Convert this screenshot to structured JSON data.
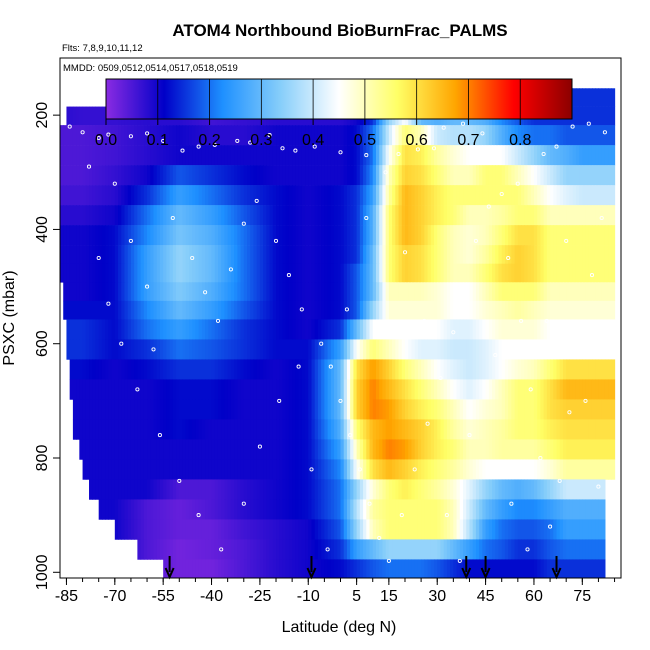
{
  "chart_data": {
    "type": "heatmap",
    "title": "ATOM4 Northbound BioBurnFrac_PALMS",
    "annotations": [
      "Flts: 7,8,9,10,11,12",
      "MMDD: 0509,0512,0514,0517,0518,0519"
    ],
    "xlabel": "Latitude (deg N)",
    "ylabel": "PSXC (mbar)",
    "xlim": [
      -87,
      87
    ],
    "ylim": [
      1010,
      100
    ],
    "x_ticks": [
      -85,
      -70,
      -55,
      -40,
      -25,
      -10,
      5,
      15,
      30,
      45,
      60,
      75
    ],
    "y_ticks": [
      200,
      400,
      600,
      800,
      1000
    ],
    "colorbar": {
      "ticks": [
        0.0,
        0.1,
        0.2,
        0.3,
        0.4,
        0.5,
        0.6,
        0.7,
        0.8
      ],
      "tick_labels": [
        "0.0",
        "0.1",
        "0.2",
        "0.3",
        "0.4",
        "0.5",
        "0.6",
        "0.7",
        "0.8"
      ],
      "range": [
        0,
        0.9
      ],
      "colors": [
        "#8a2be2",
        "#0000c8",
        "#1e90ff",
        "#87cefa",
        "#ffffff",
        "#ffff66",
        "#ffa500",
        "#ff0000",
        "#8b0000"
      ]
    },
    "pressure_bands": [
      170,
      200,
      235,
      270,
      305,
      340,
      375,
      410,
      445,
      475,
      510,
      540,
      575,
      610,
      645,
      680,
      715,
      750,
      785,
      820,
      855,
      890,
      925,
      960,
      995
    ],
    "band_lat_start": [
      -55,
      -85,
      -87,
      -87,
      -87,
      -87,
      -87,
      -87,
      -87,
      -87,
      -86,
      -86,
      -85,
      -85,
      -84,
      -84,
      -83,
      -83,
      -81,
      -80,
      -78,
      -75,
      -70,
      -63,
      -55
    ],
    "band_lat_end": [
      85,
      85,
      85,
      85,
      85,
      85,
      85,
      85,
      85,
      85,
      85,
      85,
      85,
      85,
      85,
      85,
      85,
      85,
      85,
      85,
      82,
      82,
      82,
      82,
      82
    ],
    "latitude_nodes": [
      -87,
      -80,
      -70,
      -60,
      -50,
      -40,
      -30,
      -20,
      -10,
      0,
      5,
      10,
      15,
      20,
      25,
      30,
      35,
      40,
      45,
      50,
      55,
      60,
      65,
      70,
      75,
      80,
      87
    ],
    "values": [
      [
        0.1,
        0.1,
        0.1,
        0.08,
        0.08,
        0.07,
        0.08,
        0.1,
        0.1,
        0.1,
        0.1,
        0.13,
        0.15,
        0.2,
        0.25,
        0.28,
        0.3,
        0.3,
        0.28,
        0.25,
        0.2,
        0.18,
        0.15,
        0.15,
        0.15,
        0.15,
        0.15
      ],
      [
        0.08,
        0.07,
        0.07,
        0.08,
        0.08,
        0.06,
        0.07,
        0.08,
        0.08,
        0.08,
        0.1,
        0.15,
        0.35,
        0.45,
        0.3,
        0.28,
        0.3,
        0.3,
        0.28,
        0.22,
        0.18,
        0.15,
        0.15,
        0.15,
        0.15,
        0.15,
        0.15
      ],
      [
        0.05,
        0.05,
        0.06,
        0.08,
        0.1,
        0.08,
        0.08,
        0.1,
        0.1,
        0.1,
        0.12,
        0.2,
        0.4,
        0.55,
        0.5,
        0.4,
        0.38,
        0.38,
        0.35,
        0.28,
        0.22,
        0.2,
        0.2,
        0.18,
        0.18,
        0.18,
        0.18
      ],
      [
        0.05,
        0.05,
        0.06,
        0.08,
        0.1,
        0.1,
        0.1,
        0.1,
        0.1,
        0.1,
        0.12,
        0.2,
        0.45,
        0.6,
        0.58,
        0.52,
        0.48,
        0.45,
        0.45,
        0.45,
        0.4,
        0.35,
        0.3,
        0.28,
        0.25,
        0.25,
        0.25
      ],
      [
        0.05,
        0.05,
        0.07,
        0.1,
        0.18,
        0.15,
        0.12,
        0.1,
        0.1,
        0.1,
        0.12,
        0.22,
        0.5,
        0.62,
        0.6,
        0.55,
        0.5,
        0.5,
        0.55,
        0.55,
        0.5,
        0.45,
        0.4,
        0.35,
        0.35,
        0.35,
        0.35
      ],
      [
        0.06,
        0.06,
        0.08,
        0.15,
        0.25,
        0.2,
        0.15,
        0.12,
        0.1,
        0.12,
        0.15,
        0.25,
        0.52,
        0.65,
        0.62,
        0.58,
        0.55,
        0.55,
        0.55,
        0.55,
        0.55,
        0.5,
        0.45,
        0.42,
        0.4,
        0.4,
        0.4
      ],
      [
        0.08,
        0.08,
        0.1,
        0.2,
        0.3,
        0.25,
        0.18,
        0.12,
        0.1,
        0.12,
        0.15,
        0.28,
        0.55,
        0.65,
        0.62,
        0.58,
        0.55,
        0.5,
        0.5,
        0.52,
        0.55,
        0.55,
        0.5,
        0.5,
        0.5,
        0.5,
        0.5
      ],
      [
        0.1,
        0.1,
        0.12,
        0.22,
        0.32,
        0.28,
        0.2,
        0.12,
        0.1,
        0.12,
        0.15,
        0.28,
        0.55,
        0.65,
        0.62,
        0.55,
        0.5,
        0.48,
        0.5,
        0.55,
        0.6,
        0.6,
        0.55,
        0.55,
        0.55,
        0.55,
        0.55
      ],
      [
        0.1,
        0.1,
        0.12,
        0.25,
        0.35,
        0.3,
        0.2,
        0.12,
        0.1,
        0.12,
        0.15,
        0.3,
        0.55,
        0.62,
        0.6,
        0.55,
        0.5,
        0.48,
        0.52,
        0.58,
        0.62,
        0.6,
        0.55,
        0.55,
        0.55,
        0.55,
        0.55
      ],
      [
        0.1,
        0.1,
        0.12,
        0.25,
        0.35,
        0.3,
        0.2,
        0.12,
        0.1,
        0.12,
        0.18,
        0.3,
        0.55,
        0.62,
        0.6,
        0.55,
        0.5,
        0.5,
        0.55,
        0.6,
        0.62,
        0.6,
        0.55,
        0.55,
        0.55,
        0.55,
        0.55
      ],
      [
        0.1,
        0.1,
        0.12,
        0.25,
        0.33,
        0.28,
        0.2,
        0.12,
        0.1,
        0.12,
        0.18,
        0.3,
        0.5,
        0.5,
        0.5,
        0.48,
        0.45,
        0.45,
        0.5,
        0.55,
        0.55,
        0.55,
        0.5,
        0.5,
        0.5,
        0.5,
        0.5
      ],
      [
        0.12,
        0.12,
        0.12,
        0.22,
        0.3,
        0.25,
        0.18,
        0.12,
        0.1,
        0.12,
        0.18,
        0.35,
        0.48,
        0.48,
        0.48,
        0.48,
        0.45,
        0.45,
        0.48,
        0.5,
        0.52,
        0.5,
        0.48,
        0.48,
        0.48,
        0.48,
        0.48
      ],
      [
        0.15,
        0.15,
        0.12,
        0.2,
        0.25,
        0.2,
        0.15,
        0.12,
        0.1,
        0.15,
        0.3,
        0.45,
        0.45,
        0.45,
        0.45,
        0.45,
        0.42,
        0.42,
        0.45,
        0.48,
        0.48,
        0.48,
        0.45,
        0.45,
        0.45,
        0.45,
        0.45
      ],
      [
        0.15,
        0.15,
        0.12,
        0.15,
        0.2,
        0.18,
        0.15,
        0.12,
        0.12,
        0.25,
        0.45,
        0.55,
        0.5,
        0.45,
        0.42,
        0.42,
        0.4,
        0.4,
        0.42,
        0.45,
        0.45,
        0.45,
        0.45,
        0.45,
        0.45,
        0.45,
        0.45
      ],
      [
        0.12,
        0.12,
        0.1,
        0.12,
        0.15,
        0.15,
        0.12,
        0.1,
        0.12,
        0.3,
        0.6,
        0.68,
        0.62,
        0.55,
        0.5,
        0.45,
        0.42,
        0.4,
        0.42,
        0.45,
        0.48,
        0.5,
        0.55,
        0.6,
        0.6,
        0.6,
        0.6
      ],
      [
        0.1,
        0.1,
        0.1,
        0.1,
        0.12,
        0.12,
        0.1,
        0.1,
        0.12,
        0.3,
        0.62,
        0.7,
        0.65,
        0.6,
        0.55,
        0.5,
        0.45,
        0.42,
        0.45,
        0.5,
        0.55,
        0.55,
        0.6,
        0.65,
        0.65,
        0.65,
        0.65
      ],
      [
        0.1,
        0.1,
        0.1,
        0.1,
        0.12,
        0.12,
        0.1,
        0.1,
        0.12,
        0.3,
        0.62,
        0.7,
        0.68,
        0.62,
        0.58,
        0.55,
        0.5,
        0.45,
        0.48,
        0.5,
        0.55,
        0.55,
        0.6,
        0.62,
        0.62,
        0.62,
        0.62
      ],
      [
        0.1,
        0.1,
        0.1,
        0.1,
        0.12,
        0.1,
        0.1,
        0.1,
        0.12,
        0.28,
        0.55,
        0.65,
        0.68,
        0.65,
        0.62,
        0.58,
        0.52,
        0.48,
        0.5,
        0.52,
        0.55,
        0.55,
        0.58,
        0.6,
        0.6,
        0.6,
        0.6
      ],
      [
        0.1,
        0.1,
        0.1,
        0.1,
        0.1,
        0.1,
        0.1,
        0.1,
        0.12,
        0.25,
        0.5,
        0.65,
        0.7,
        0.68,
        0.62,
        0.58,
        0.55,
        0.5,
        0.5,
        0.52,
        0.52,
        0.52,
        0.55,
        0.58,
        0.58,
        0.58,
        0.58
      ],
      [
        0.1,
        0.1,
        0.1,
        0.1,
        0.1,
        0.1,
        0.1,
        0.1,
        0.12,
        0.22,
        0.45,
        0.6,
        0.65,
        0.62,
        0.58,
        0.55,
        0.52,
        0.48,
        0.45,
        0.45,
        0.45,
        0.45,
        0.48,
        0.52,
        0.52,
        0.52,
        0.52
      ],
      [
        0.1,
        0.1,
        0.1,
        0.1,
        0.05,
        0.05,
        0.08,
        0.1,
        0.12,
        0.2,
        0.35,
        0.48,
        0.55,
        0.58,
        0.55,
        0.52,
        0.48,
        0.42,
        0.35,
        0.3,
        0.28,
        0.3,
        0.35,
        0.4,
        0.4,
        0.4,
        0.4
      ],
      [
        0.1,
        0.1,
        0.1,
        0.05,
        0.03,
        0.05,
        0.08,
        0.1,
        0.12,
        0.2,
        0.38,
        0.52,
        0.55,
        0.55,
        0.55,
        0.55,
        0.5,
        0.4,
        0.3,
        0.25,
        0.22,
        0.22,
        0.25,
        0.28,
        0.28,
        0.28,
        0.28
      ],
      [
        0.1,
        0.1,
        0.1,
        0.05,
        0.03,
        0.03,
        0.06,
        0.08,
        0.1,
        0.18,
        0.35,
        0.5,
        0.55,
        0.55,
        0.55,
        0.55,
        0.5,
        0.38,
        0.25,
        0.2,
        0.18,
        0.18,
        0.2,
        0.25,
        0.25,
        0.25,
        0.25
      ],
      [
        0.1,
        0.1,
        0.1,
        0.05,
        0.02,
        0.03,
        0.05,
        0.08,
        0.1,
        0.15,
        0.25,
        0.3,
        0.35,
        0.35,
        0.35,
        0.35,
        0.3,
        0.25,
        0.2,
        0.18,
        0.15,
        0.15,
        0.18,
        0.2,
        0.2,
        0.2,
        0.2
      ],
      [
        0.1,
        0.1,
        0.1,
        0.05,
        0.02,
        0.02,
        0.05,
        0.08,
        0.1,
        0.12,
        0.15,
        0.18,
        0.2,
        0.2,
        0.2,
        0.18,
        0.15,
        0.12,
        0.12,
        0.12,
        0.12,
        0.12,
        0.15,
        0.15,
        0.15,
        0.15,
        0.15
      ]
    ],
    "flight_tracks": [
      {
        "lat": -84,
        "p": 220
      },
      {
        "lat": -80,
        "p": 230
      },
      {
        "lat": -75,
        "p": 240
      },
      {
        "lat": -72,
        "p": 234
      },
      {
        "lat": -65,
        "p": 237
      },
      {
        "lat": -60,
        "p": 232
      },
      {
        "lat": -55,
        "p": 245
      },
      {
        "lat": -49,
        "p": 262
      },
      {
        "lat": -44,
        "p": 255
      },
      {
        "lat": -39,
        "p": 252
      },
      {
        "lat": -32,
        "p": 245
      },
      {
        "lat": -28,
        "p": 248
      },
      {
        "lat": -22,
        "p": 235
      },
      {
        "lat": -18,
        "p": 258
      },
      {
        "lat": -14,
        "p": 262
      },
      {
        "lat": -8,
        "p": 255
      },
      {
        "lat": 0,
        "p": 265
      },
      {
        "lat": 8,
        "p": 270
      },
      {
        "lat": 18,
        "p": 268
      },
      {
        "lat": 24,
        "p": 260
      },
      {
        "lat": 29,
        "p": 258
      },
      {
        "lat": 32,
        "p": 222
      },
      {
        "lat": 38,
        "p": 215
      },
      {
        "lat": 44,
        "p": 232
      },
      {
        "lat": 50,
        "p": 338
      },
      {
        "lat": 55,
        "p": 320
      },
      {
        "lat": 63,
        "p": 268
      },
      {
        "lat": 67,
        "p": 255
      },
      {
        "lat": 72,
        "p": 220
      },
      {
        "lat": 77,
        "p": 215
      },
      {
        "lat": 82,
        "p": 230
      },
      {
        "lat": -78,
        "p": 290
      },
      {
        "lat": -70,
        "p": 320
      },
      {
        "lat": -65,
        "p": 420
      },
      {
        "lat": -60,
        "p": 500
      },
      {
        "lat": -58,
        "p": 610
      },
      {
        "lat": -52,
        "p": 380
      },
      {
        "lat": -46,
        "p": 450
      },
      {
        "lat": -42,
        "p": 510
      },
      {
        "lat": -38,
        "p": 560
      },
      {
        "lat": -34,
        "p": 470
      },
      {
        "lat": -30,
        "p": 390
      },
      {
        "lat": -26,
        "p": 350
      },
      {
        "lat": -20,
        "p": 420
      },
      {
        "lat": -16,
        "p": 480
      },
      {
        "lat": -12,
        "p": 540
      },
      {
        "lat": -6,
        "p": 600
      },
      {
        "lat": -3,
        "p": 640
      },
      {
        "lat": 0,
        "p": 700
      },
      {
        "lat": 3,
        "p": 760
      },
      {
        "lat": 6,
        "p": 820
      },
      {
        "lat": 9,
        "p": 880
      },
      {
        "lat": 12,
        "p": 940
      },
      {
        "lat": 15,
        "p": 980
      },
      {
        "lat": 19,
        "p": 900
      },
      {
        "lat": 23,
        "p": 820
      },
      {
        "lat": 27,
        "p": 740
      },
      {
        "lat": 31,
        "p": 660
      },
      {
        "lat": 35,
        "p": 580
      },
      {
        "lat": 39,
        "p": 500
      },
      {
        "lat": 42,
        "p": 420
      },
      {
        "lat": 46,
        "p": 360
      },
      {
        "lat": 52,
        "p": 450
      },
      {
        "lat": 56,
        "p": 560
      },
      {
        "lat": 59,
        "p": 680
      },
      {
        "lat": 62,
        "p": 800
      },
      {
        "lat": 65,
        "p": 920
      },
      {
        "lat": 68,
        "p": 840
      },
      {
        "lat": 71,
        "p": 720
      },
      {
        "lat": 74,
        "p": 600
      },
      {
        "lat": 78,
        "p": 480
      },
      {
        "lat": 81,
        "p": 380
      },
      {
        "lat": -75,
        "p": 450
      },
      {
        "lat": -72,
        "p": 530
      },
      {
        "lat": -68,
        "p": 600
      },
      {
        "lat": -63,
        "p": 680
      },
      {
        "lat": -56,
        "p": 760
      },
      {
        "lat": -50,
        "p": 840
      },
      {
        "lat": -44,
        "p": 900
      },
      {
        "lat": -37,
        "p": 960
      },
      {
        "lat": -30,
        "p": 880
      },
      {
        "lat": -25,
        "p": 780
      },
      {
        "lat": -19,
        "p": 700
      },
      {
        "lat": -13,
        "p": 640
      },
      {
        "lat": -9,
        "p": 820
      },
      {
        "lat": -4,
        "p": 960
      },
      {
        "lat": 2,
        "p": 540
      },
      {
        "lat": 8,
        "p": 380
      },
      {
        "lat": 14,
        "p": 300
      },
      {
        "lat": 20,
        "p": 440
      },
      {
        "lat": 26,
        "p": 560
      },
      {
        "lat": 33,
        "p": 900
      },
      {
        "lat": 37,
        "p": 980
      },
      {
        "lat": 40,
        "p": 760
      },
      {
        "lat": 48,
        "p": 620
      },
      {
        "lat": 53,
        "p": 880
      },
      {
        "lat": 58,
        "p": 960
      },
      {
        "lat": 64,
        "p": 560
      },
      {
        "lat": 70,
        "p": 420
      },
      {
        "lat": 76,
        "p": 700
      },
      {
        "lat": 80,
        "p": 850
      },
      {
        "lat": 83,
        "p": 960
      }
    ],
    "arrows_lat": [
      -53,
      -9,
      39,
      45,
      67
    ]
  }
}
